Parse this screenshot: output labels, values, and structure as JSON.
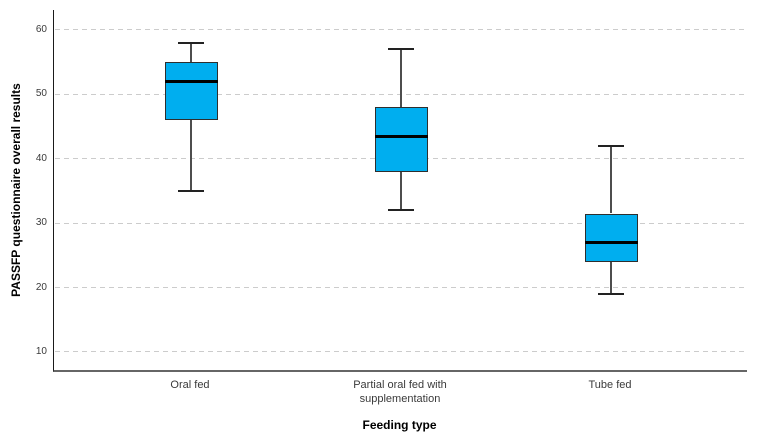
{
  "chart_data": {
    "type": "boxplot",
    "title": "",
    "xlabel": "Feeding type",
    "ylabel": "PASSFP questionnaire overall results",
    "categories": [
      "Oral fed",
      "Partial oral fed with\nsupplementation",
      "Tube fed"
    ],
    "y_ticks": [
      10,
      20,
      30,
      40,
      50,
      60
    ],
    "ylim": [
      7.2,
      63.1
    ],
    "grid": "horizontal-dashed",
    "legend": "none",
    "series": [
      {
        "category": "Oral fed",
        "whisker_low": 35,
        "q1": 46,
        "median": 52,
        "q3": 55,
        "whisker_high": 58
      },
      {
        "category": "Partial oral fed with supplementation",
        "whisker_low": 32,
        "q1": 38,
        "median": 43.5,
        "q3": 48,
        "whisker_high": 57
      },
      {
        "category": "Tube fed",
        "whisker_low": 19,
        "q1": 24,
        "median": 27,
        "q3": 31.5,
        "whisker_high": 42
      }
    ],
    "colors": {
      "box_fill": "#00AEEF",
      "box_border": "#2e2e2e",
      "median": "#000000",
      "whisker": "#4d4d4d",
      "gridline": "#cccccc",
      "x_axis_line": "#666666",
      "y_axis_line": "#1a1a1a",
      "tick_label": "#3a3a3a"
    }
  }
}
